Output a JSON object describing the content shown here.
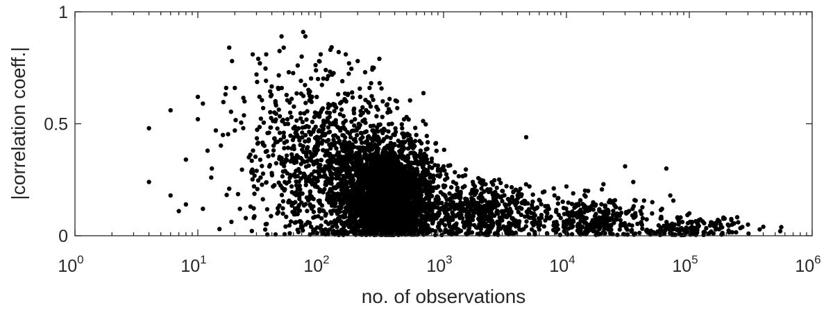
{
  "chart_data": {
    "type": "scatter",
    "title": "",
    "xlabel": "no. of observations",
    "ylabel": "|correlation coeff.|",
    "x_scale": "log",
    "xlim": [
      1,
      1000000
    ],
    "ylim": [
      0,
      1
    ],
    "x_ticks": [
      {
        "value": 1,
        "base": "10",
        "exp": "0"
      },
      {
        "value": 10,
        "base": "10",
        "exp": "1"
      },
      {
        "value": 100,
        "base": "10",
        "exp": "2"
      },
      {
        "value": 1000,
        "base": "10",
        "exp": "3"
      },
      {
        "value": 10000,
        "base": "10",
        "exp": "4"
      },
      {
        "value": 100000,
        "base": "10",
        "exp": "5"
      },
      {
        "value": 1000000,
        "base": "10",
        "exp": "6"
      }
    ],
    "y_ticks": [
      {
        "value": 0,
        "label": "0"
      },
      {
        "value": 0.5,
        "label": "0.5"
      },
      {
        "value": 1,
        "label": "1"
      }
    ],
    "grid": false,
    "marker_color": "#000000",
    "series": [
      {
        "points": [
          [
            4,
            0.48
          ],
          [
            4,
            0.24
          ],
          [
            6,
            0.56
          ],
          [
            6,
            0.18
          ],
          [
            7,
            0.11
          ],
          [
            8,
            0.34
          ],
          [
            8,
            0.14
          ],
          [
            10,
            0.62
          ],
          [
            10,
            0.52
          ],
          [
            11,
            0.59
          ],
          [
            11,
            0.12
          ],
          [
            12,
            0.38
          ],
          [
            13,
            0.3
          ],
          [
            14,
            0.47
          ],
          [
            15,
            0.03
          ],
          [
            16,
            0.45
          ],
          [
            17,
            0.66
          ],
          [
            18,
            0.84
          ],
          [
            18,
            0.21
          ],
          [
            19,
            0.78
          ],
          [
            20,
            0.47
          ],
          [
            20,
            0.66
          ],
          [
            22,
            0.12
          ],
          [
            24,
            0.6
          ],
          [
            26,
            0.35
          ],
          [
            28,
            0.81
          ],
          [
            30,
            0.72
          ],
          [
            31,
            0.79
          ],
          [
            32,
            0.77
          ],
          [
            34,
            0.57
          ],
          [
            36,
            0.81
          ],
          [
            38,
            0.46
          ],
          [
            40,
            0.28
          ],
          [
            42,
            0.55
          ],
          [
            45,
            0.66
          ],
          [
            48,
            0.89
          ],
          [
            50,
            0.84
          ],
          [
            50,
            0.46
          ],
          [
            52,
            0.34
          ],
          [
            55,
            0.73
          ],
          [
            58,
            0.22
          ],
          [
            60,
            0.48
          ],
          [
            62,
            0.15
          ],
          [
            65,
            0.76
          ],
          [
            70,
            0.8
          ],
          [
            72,
            0.91
          ],
          [
            75,
            0.89
          ],
          [
            80,
            0.43
          ],
          [
            85,
            0.62
          ],
          [
            90,
            0.55
          ],
          [
            95,
            0.7
          ],
          [
            100,
            0.81
          ],
          [
            110,
            0.74
          ],
          [
            120,
            0.83
          ],
          [
            130,
            0.58
          ],
          [
            140,
            0.82
          ],
          [
            150,
            0.69
          ],
          [
            160,
            0.81
          ],
          [
            170,
            0.77
          ],
          [
            180,
            0.64
          ],
          [
            190,
            0.52
          ],
          [
            200,
            0.78
          ],
          [
            210,
            0.62
          ],
          [
            230,
            0.73
          ],
          [
            250,
            0.66
          ],
          [
            270,
            0.75
          ],
          [
            300,
            0.79
          ],
          [
            320,
            0.6
          ],
          [
            350,
            0.55
          ],
          [
            380,
            0.5
          ],
          [
            420,
            0.57
          ],
          [
            460,
            0.48
          ],
          [
            500,
            0.53
          ],
          [
            550,
            0.42
          ],
          [
            600,
            0.45
          ],
          [
            650,
            0.38
          ],
          [
            700,
            0.36
          ],
          [
            800,
            0.33
          ],
          [
            900,
            0.29
          ],
          [
            1000,
            0.31
          ],
          [
            1200,
            0.24
          ],
          [
            1500,
            0.27
          ],
          [
            1800,
            0.22
          ],
          [
            2000,
            0.25
          ],
          [
            2500,
            0.19
          ],
          [
            3000,
            0.2
          ],
          [
            4000,
            0.18
          ],
          [
            4700,
            0.44
          ],
          [
            5000,
            0.22
          ],
          [
            6000,
            0.16
          ],
          [
            8000,
            0.18
          ],
          [
            10000,
            0.22
          ],
          [
            12000,
            0.14
          ],
          [
            15000,
            0.2
          ],
          [
            20000,
            0.23
          ],
          [
            25000,
            0.13
          ],
          [
            30000,
            0.31
          ],
          [
            35000,
            0.24
          ],
          [
            40000,
            0.11
          ],
          [
            50000,
            0.15
          ],
          [
            60000,
            0.12
          ],
          [
            65000,
            0.3
          ],
          [
            70000,
            0.18
          ],
          [
            80000,
            0.08
          ],
          [
            100000,
            0.1
          ],
          [
            120000,
            0.07
          ],
          [
            150000,
            0.06
          ],
          [
            180000,
            0.05
          ],
          [
            220000,
            0.07
          ],
          [
            250000,
            0.06
          ],
          [
            300000,
            0.05
          ],
          [
            400000,
            0.04
          ],
          [
            550000,
            0.02
          ]
        ],
        "dense_clusters": [
          {
            "x_log10_center": 2.55,
            "x_log10_spread": 0.32,
            "y_mean": 0.17,
            "y_spread": 0.12,
            "count": 2600
          },
          {
            "x_log10_center": 2.2,
            "x_log10_spread": 0.45,
            "y_mean": 0.28,
            "y_spread": 0.17,
            "count": 900
          },
          {
            "x_log10_center": 1.8,
            "x_log10_spread": 0.45,
            "y_mean": 0.38,
            "y_spread": 0.18,
            "count": 250
          },
          {
            "x_log10_center": 3.3,
            "x_log10_spread": 0.35,
            "y_mean": 0.1,
            "y_spread": 0.07,
            "count": 500
          },
          {
            "x_log10_center": 4.2,
            "x_log10_spread": 0.45,
            "y_mean": 0.07,
            "y_spread": 0.05,
            "count": 350
          },
          {
            "x_log10_center": 5.0,
            "x_log10_spread": 0.35,
            "y_mean": 0.03,
            "y_spread": 0.025,
            "count": 150
          }
        ]
      }
    ]
  }
}
